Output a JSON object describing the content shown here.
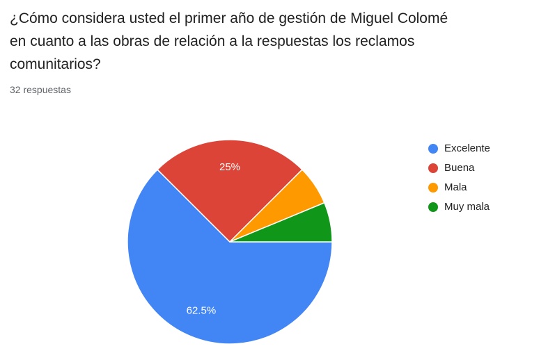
{
  "page": {
    "title": "¿Cómo considera usted el primer año de gestión de Miguel Colomé en cuanto a las obras de relación a la respuestas los reclamos comunitarios?",
    "title_lines": [
      "¿Cómo considera usted el primer año de gestión de Miguel Colomé",
      "en cuanto a las obras de relación a la respuestas los reclamos",
      "comunitarios?"
    ],
    "responses_label": "32 respuestas"
  },
  "chart_data": {
    "type": "pie",
    "title": "¿Cómo considera usted el primer año de gestión de Miguel Colomé en cuanto a las obras de relación a la respuestas los reclamos comunitarios?",
    "categories": [
      "Excelente",
      "Buena",
      "Mala",
      "Muy mala"
    ],
    "values": [
      62.5,
      25,
      6.25,
      6.25
    ],
    "slice_labels": [
      "62.5%",
      "25%",
      "",
      ""
    ],
    "colors": [
      "#4285F4",
      "#DB4437",
      "#FF9900",
      "#109618"
    ],
    "start_angle_deg": 90,
    "direction": "clockwise",
    "legend_position": "right",
    "total_label": "32 respuestas"
  }
}
